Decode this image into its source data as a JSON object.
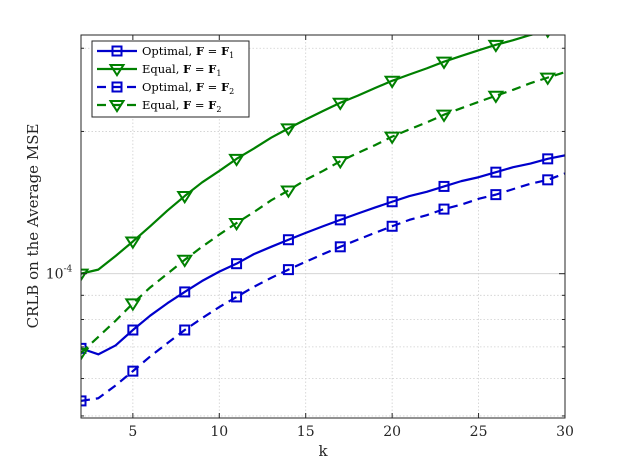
{
  "chart_data": {
    "type": "line",
    "xlabel": "k",
    "ylabel": "CRLB on the Average MSE",
    "xlim": [
      2,
      30
    ],
    "ylim": [
      4.95e-05,
      0.00032
    ],
    "yscale": "log",
    "grid": true,
    "legend_position": "top-left",
    "xticks": [
      5,
      10,
      15,
      20,
      25,
      30
    ],
    "yticks": [
      {
        "value": 0.0001,
        "base": "10",
        "exp": "-4"
      }
    ],
    "series": [
      {
        "name": "Optimal, F = F1",
        "legend": {
          "prefix": "Optimal, ",
          "lhs": "F",
          "rhs": "F",
          "sub": "1"
        },
        "color": "#0000cc",
        "dash": "solid",
        "marker": "square",
        "x": [
          2,
          3,
          4,
          5,
          6,
          7,
          8,
          9,
          10,
          11,
          12,
          13,
          14,
          15,
          16,
          17,
          18,
          19,
          20,
          21,
          22,
          23,
          24,
          25,
          26,
          27,
          28,
          29,
          30
        ],
        "y": [
          6.95e-05,
          6.75e-05,
          7.05e-05,
          7.6e-05,
          8.15e-05,
          8.66e-05,
          9.15e-05,
          9.65e-05,
          0.000101,
          0.000105,
          0.00011,
          0.000114,
          0.000118,
          0.000122,
          0.000126,
          0.00013,
          0.000134,
          0.000138,
          0.000142,
          0.000146,
          0.000149,
          0.000153,
          0.000157,
          0.00016,
          0.000164,
          0.000168,
          0.000171,
          0.000175,
          0.000178
        ],
        "marker_x": [
          2,
          5,
          8,
          11,
          14,
          17,
          20,
          23,
          26,
          29
        ]
      },
      {
        "name": "Equal, F = F1",
        "legend": {
          "prefix": "Equal, ",
          "lhs": "F",
          "rhs": "F",
          "sub": "1"
        },
        "color": "#008000",
        "dash": "solid",
        "marker": "triangle-down",
        "x": [
          2,
          3,
          4,
          5,
          6,
          7,
          8,
          9,
          10,
          11,
          12,
          13,
          14,
          15,
          16,
          17,
          18,
          19,
          20,
          21,
          22,
          23,
          24,
          25,
          26,
          27,
          28,
          29,
          30
        ],
        "y": [
          0.0001,
          0.000102,
          0.000109,
          0.000117,
          0.000126,
          0.000136,
          0.000146,
          0.000156,
          0.000165,
          0.000175,
          0.000184,
          0.000194,
          0.000203,
          0.000212,
          0.000221,
          0.00023,
          0.000238,
          0.000247,
          0.000256,
          0.000264,
          0.000272,
          0.000281,
          0.000289,
          0.000297,
          0.000305,
          0.000312,
          0.00032,
          0.000327,
          0.000335
        ],
        "marker_x": [
          2,
          5,
          8,
          11,
          14,
          17,
          20,
          23,
          26,
          29
        ]
      },
      {
        "name": "Optimal, F = F2",
        "legend": {
          "prefix": "Optimal, ",
          "lhs": "F",
          "rhs": "F",
          "sub": "2"
        },
        "color": "#0000cc",
        "dash": "dashed",
        "marker": "square",
        "x": [
          2,
          3,
          4,
          5,
          6,
          7,
          8,
          9,
          10,
          11,
          12,
          13,
          14,
          15,
          16,
          17,
          18,
          19,
          20,
          21,
          22,
          23,
          24,
          25,
          26,
          27,
          28,
          29,
          30
        ],
        "y": [
          5.38e-05,
          5.45e-05,
          5.8e-05,
          6.22e-05,
          6.68e-05,
          7.13e-05,
          7.6e-05,
          8.05e-05,
          8.5e-05,
          8.93e-05,
          9.38e-05,
          9.8e-05,
          0.000102,
          0.000106,
          0.00011,
          0.000114,
          0.000118,
          0.000122,
          0.000126,
          0.00013,
          0.000133,
          0.000137,
          0.00014,
          0.000144,
          0.000147,
          0.000151,
          0.000155,
          0.000158,
          0.000163
        ],
        "marker_x": [
          2,
          5,
          8,
          11,
          14,
          17,
          20,
          23,
          26,
          29
        ]
      },
      {
        "name": "Equal, F = F2",
        "legend": {
          "prefix": "Equal, ",
          "lhs": "F",
          "rhs": "F",
          "sub": "2"
        },
        "color": "#008000",
        "dash": "dashed",
        "marker": "triangle-down",
        "x": [
          2,
          3,
          4,
          5,
          6,
          7,
          8,
          9,
          10,
          11,
          12,
          13,
          14,
          15,
          16,
          17,
          18,
          19,
          20,
          21,
          22,
          23,
          24,
          25,
          26,
          27,
          28,
          29,
          30
        ],
        "y": [
          6.8e-05,
          7.35e-05,
          7.95e-05,
          8.65e-05,
          9.35e-05,
          0.0001,
          0.000107,
          0.000114,
          0.000121,
          0.000128,
          0.000135,
          0.000143,
          0.00015,
          0.000158,
          0.000165,
          0.000173,
          0.00018,
          0.000187,
          0.000195,
          0.000202,
          0.000209,
          0.000217,
          0.000224,
          0.000231,
          0.000238,
          0.000245,
          0.000253,
          0.00026,
          0.000267
        ],
        "marker_x": [
          2,
          5,
          8,
          11,
          14,
          17,
          20,
          23,
          26,
          29
        ]
      }
    ]
  }
}
